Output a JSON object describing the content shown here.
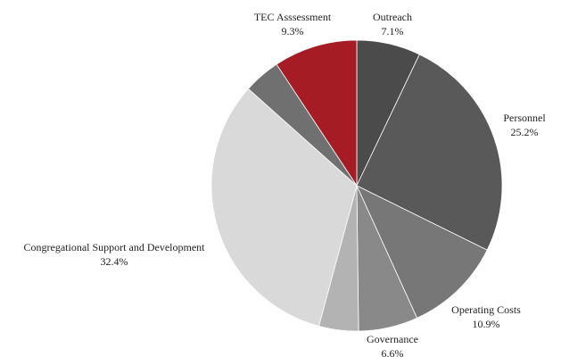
{
  "chart_data": {
    "type": "pie",
    "categories": [
      "Outreach",
      "Personnel",
      "Operating Costs",
      "Governance",
      null,
      "Congregational Support and Development",
      null,
      "TEC Asssessment"
    ],
    "values": [
      7.1,
      25.2,
      10.9,
      6.6,
      4.4,
      32.4,
      4.1,
      9.3
    ],
    "value_labels": [
      "7.1%",
      "25.2%",
      "10.9%",
      "6.6%",
      null,
      "32.4%",
      null,
      "9.3%"
    ],
    "colors": [
      "#4b4b4b",
      "#595959",
      "#777777",
      "#898989",
      "#b3b3b3",
      "#d9d9d9",
      "#707070",
      "#a61c24"
    ]
  }
}
